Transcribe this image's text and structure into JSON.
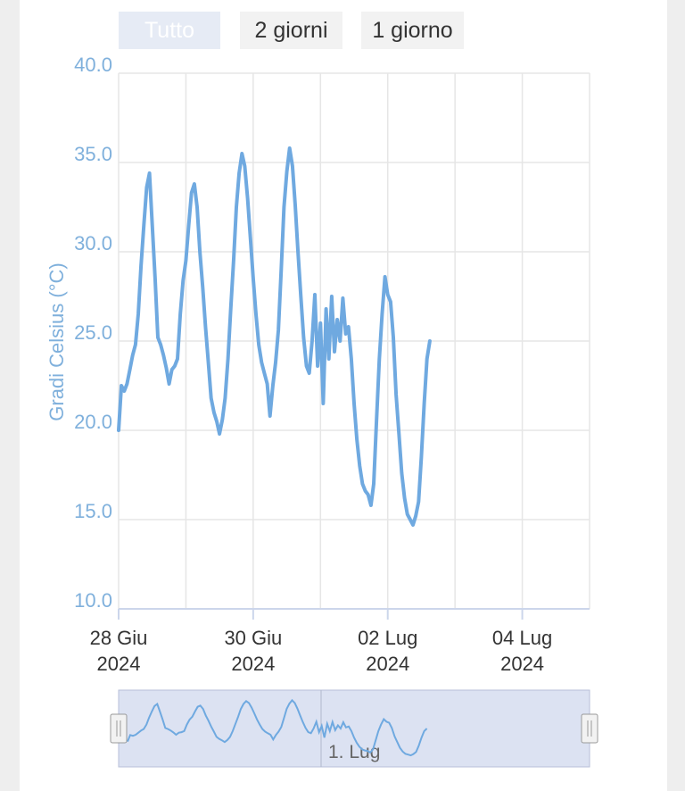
{
  "range_selector": {
    "buttons": [
      {
        "label": "Tutto",
        "selected": true
      },
      {
        "label": "2 giorni",
        "selected": false
      },
      {
        "label": "1 giorno",
        "selected": false
      }
    ]
  },
  "colors": {
    "series": "#6fa9e0",
    "axis_label": "#7fb0dc",
    "gridline": "#e6e6e6",
    "navigator_fill": "#dce2f2",
    "button_selected_bg": "#e6ebf5",
    "button_bg": "#f2f2f2"
  },
  "chart_data": {
    "type": "line",
    "title": "",
    "ylabel": "Gradi Celsius (°C)",
    "xlabel": "",
    "ylim": [
      10,
      40
    ],
    "y_ticks": [
      "40.0",
      "35.0",
      "30.0",
      "25.0",
      "20.0",
      "15.0",
      "10.0"
    ],
    "xlim": [
      "2024-06-28 00:00",
      "2024-07-05 00:00"
    ],
    "x_ticks": [
      {
        "day": "28 Giu",
        "year": "2024"
      },
      {
        "day": "30 Giu",
        "year": "2024"
      },
      {
        "day": "02 Lug",
        "year": "2024"
      },
      {
        "day": "04 Lug",
        "year": "2024"
      }
    ],
    "grid": true,
    "series": [
      {
        "points": [
          [
            "2024-06-28 00:00",
            20.0
          ],
          [
            "2024-06-28 01:00",
            22.5
          ],
          [
            "2024-06-28 02:00",
            22.2
          ],
          [
            "2024-06-28 03:00",
            22.6
          ],
          [
            "2024-06-28 04:00",
            23.4
          ],
          [
            "2024-06-28 05:00",
            24.2
          ],
          [
            "2024-06-28 06:00",
            24.8
          ],
          [
            "2024-06-28 07:00",
            26.5
          ],
          [
            "2024-06-28 08:00",
            29.2
          ],
          [
            "2024-06-28 09:00",
            31.5
          ],
          [
            "2024-06-28 10:00",
            33.6
          ],
          [
            "2024-06-28 11:00",
            34.4
          ],
          [
            "2024-06-28 12:00",
            31.5
          ],
          [
            "2024-06-28 13:00",
            28.5
          ],
          [
            "2024-06-28 14:00",
            25.2
          ],
          [
            "2024-06-28 15:00",
            24.8
          ],
          [
            "2024-06-28 16:00",
            24.2
          ],
          [
            "2024-06-28 17:00",
            23.5
          ],
          [
            "2024-06-28 18:00",
            22.6
          ],
          [
            "2024-06-28 19:00",
            23.4
          ],
          [
            "2024-06-28 20:00",
            23.6
          ],
          [
            "2024-06-28 21:00",
            24.0
          ],
          [
            "2024-06-28 22:00",
            26.5
          ],
          [
            "2024-06-28 23:00",
            28.4
          ],
          [
            "2024-06-29 00:00",
            29.5
          ],
          [
            "2024-06-29 01:00",
            31.5
          ],
          [
            "2024-06-29 02:00",
            33.3
          ],
          [
            "2024-06-29 03:00",
            33.8
          ],
          [
            "2024-06-29 04:00",
            32.5
          ],
          [
            "2024-06-29 05:00",
            30.0
          ],
          [
            "2024-06-29 06:00",
            28.0
          ],
          [
            "2024-06-29 07:00",
            25.8
          ],
          [
            "2024-06-29 08:00",
            23.8
          ],
          [
            "2024-06-29 09:00",
            21.8
          ],
          [
            "2024-06-29 10:00",
            21.0
          ],
          [
            "2024-06-29 11:00",
            20.5
          ],
          [
            "2024-06-29 12:00",
            19.8
          ],
          [
            "2024-06-29 13:00",
            20.6
          ],
          [
            "2024-06-29 14:00",
            21.8
          ],
          [
            "2024-06-29 15:00",
            24.0
          ],
          [
            "2024-06-29 16:00",
            26.8
          ],
          [
            "2024-06-29 17:00",
            29.5
          ],
          [
            "2024-06-29 18:00",
            32.5
          ],
          [
            "2024-06-29 19:00",
            34.4
          ],
          [
            "2024-06-29 20:00",
            35.5
          ],
          [
            "2024-06-29 21:00",
            34.8
          ],
          [
            "2024-06-29 22:00",
            33.0
          ],
          [
            "2024-06-29 23:00",
            30.8
          ],
          [
            "2024-06-30 00:00",
            28.5
          ],
          [
            "2024-06-30 01:00",
            26.5
          ],
          [
            "2024-06-30 02:00",
            24.8
          ],
          [
            "2024-06-30 03:00",
            23.8
          ],
          [
            "2024-06-30 04:00",
            23.2
          ],
          [
            "2024-06-30 05:00",
            22.6
          ],
          [
            "2024-06-30 06:00",
            20.8
          ],
          [
            "2024-06-30 07:00",
            22.5
          ],
          [
            "2024-06-30 08:00",
            23.8
          ],
          [
            "2024-06-30 09:00",
            25.6
          ],
          [
            "2024-06-30 10:00",
            29.0
          ],
          [
            "2024-06-30 11:00",
            32.5
          ],
          [
            "2024-06-30 12:00",
            34.5
          ],
          [
            "2024-06-30 13:00",
            35.8
          ],
          [
            "2024-06-30 14:00",
            34.8
          ],
          [
            "2024-06-30 15:00",
            32.6
          ],
          [
            "2024-06-30 16:00",
            30.0
          ],
          [
            "2024-06-30 17:00",
            27.5
          ],
          [
            "2024-06-30 18:00",
            25.2
          ],
          [
            "2024-06-30 19:00",
            23.6
          ],
          [
            "2024-06-30 20:00",
            23.2
          ],
          [
            "2024-06-30 21:00",
            25.0
          ],
          [
            "2024-06-30 22:00",
            27.6
          ],
          [
            "2024-06-30 23:00",
            23.6
          ],
          [
            "2024-07-01 00:00",
            26.0
          ],
          [
            "2024-07-01 01:00",
            21.5
          ],
          [
            "2024-07-01 02:00",
            26.8
          ],
          [
            "2024-07-01 03:00",
            24.0
          ],
          [
            "2024-07-01 04:00",
            27.5
          ],
          [
            "2024-07-01 05:00",
            24.4
          ],
          [
            "2024-07-01 06:00",
            26.2
          ],
          [
            "2024-07-01 07:00",
            25.0
          ],
          [
            "2024-07-01 08:00",
            27.4
          ],
          [
            "2024-07-01 09:00",
            25.4
          ],
          [
            "2024-07-01 10:00",
            25.8
          ],
          [
            "2024-07-01 11:00",
            24.0
          ],
          [
            "2024-07-01 12:00",
            21.5
          ],
          [
            "2024-07-01 13:00",
            19.5
          ],
          [
            "2024-07-01 14:00",
            18.0
          ],
          [
            "2024-07-01 15:00",
            17.0
          ],
          [
            "2024-07-01 16:00",
            16.6
          ],
          [
            "2024-07-01 17:00",
            16.4
          ],
          [
            "2024-07-01 18:00",
            15.8
          ],
          [
            "2024-07-01 19:00",
            17.0
          ],
          [
            "2024-07-01 20:00",
            20.5
          ],
          [
            "2024-07-01 21:00",
            24.0
          ],
          [
            "2024-07-01 22:00",
            26.5
          ],
          [
            "2024-07-01 23:00",
            28.6
          ],
          [
            "2024-07-02 00:00",
            27.6
          ],
          [
            "2024-07-02 01:00",
            27.2
          ],
          [
            "2024-07-02 02:00",
            25.2
          ],
          [
            "2024-07-02 03:00",
            22.0
          ],
          [
            "2024-07-02 04:00",
            19.8
          ],
          [
            "2024-07-02 05:00",
            17.6
          ],
          [
            "2024-07-02 06:00",
            16.2
          ],
          [
            "2024-07-02 07:00",
            15.3
          ],
          [
            "2024-07-02 08:00",
            15.0
          ],
          [
            "2024-07-02 09:00",
            14.7
          ],
          [
            "2024-07-02 10:00",
            15.2
          ],
          [
            "2024-07-02 11:00",
            16.0
          ],
          [
            "2024-07-02 12:00",
            18.5
          ],
          [
            "2024-07-02 13:00",
            21.5
          ],
          [
            "2024-07-02 14:00",
            24.0
          ],
          [
            "2024-07-02 15:00",
            25.0
          ]
        ]
      }
    ],
    "navigator": {
      "handle_left": "2024-06-28 00:00",
      "handle_right": "2024-07-05 00:00",
      "tick_label": "1. Lug"
    }
  }
}
